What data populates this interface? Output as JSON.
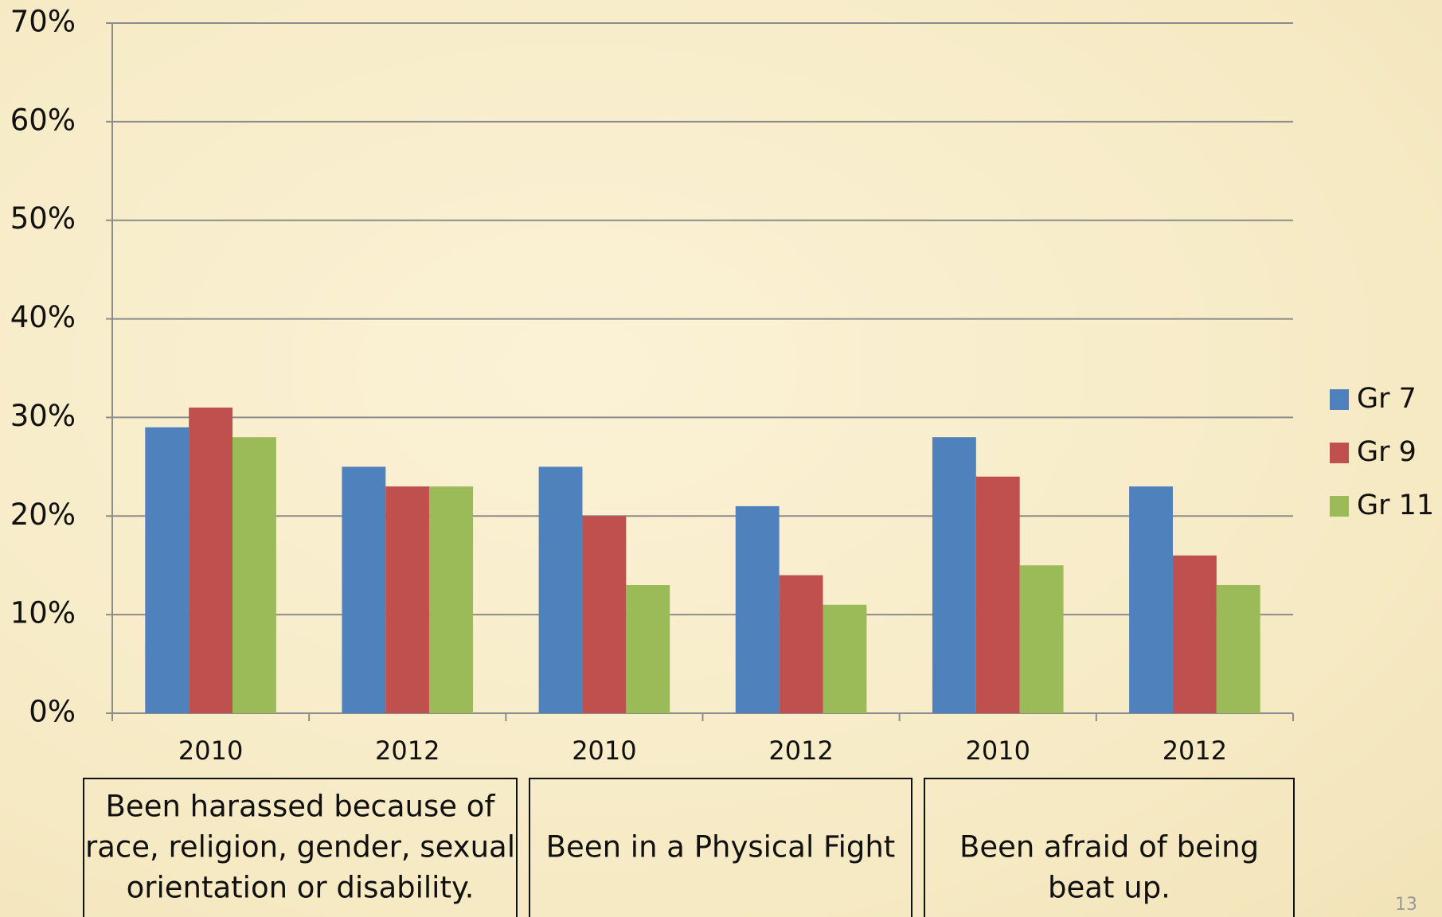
{
  "chart_data": {
    "type": "bar",
    "categories": [
      "2010",
      "2012",
      "2010",
      "2012",
      "2010",
      "2012"
    ],
    "groups": [
      [
        "Been harassed because of",
        "race, religion, gender, sexual",
        "orientation or disability."
      ],
      [
        "Been in a Physical Fight"
      ],
      [
        "Been afraid of being",
        "beat up."
      ]
    ],
    "series": [
      {
        "name": "Gr 7",
        "color": "#4f81bd",
        "values": [
          29,
          25,
          25,
          21,
          28,
          23
        ]
      },
      {
        "name": "Gr 9",
        "color": "#c0504d",
        "values": [
          31,
          23,
          20,
          14,
          24,
          16
        ]
      },
      {
        "name": "Gr 11",
        "color": "#9bbb59",
        "values": [
          28,
          23,
          13,
          11,
          15,
          13
        ]
      }
    ],
    "ylim": [
      0,
      70
    ],
    "yticks": [
      {
        "value": 0,
        "label": "0%"
      },
      {
        "value": 10,
        "label": "10%"
      },
      {
        "value": 20,
        "label": "20%"
      },
      {
        "value": 30,
        "label": "30%"
      },
      {
        "value": 40,
        "label": "40%"
      },
      {
        "value": 50,
        "label": "50%"
      },
      {
        "value": 60,
        "label": "60%"
      },
      {
        "value": 70,
        "label": "70%"
      }
    ],
    "grid": true,
    "legend": "right",
    "page_number": "13"
  }
}
